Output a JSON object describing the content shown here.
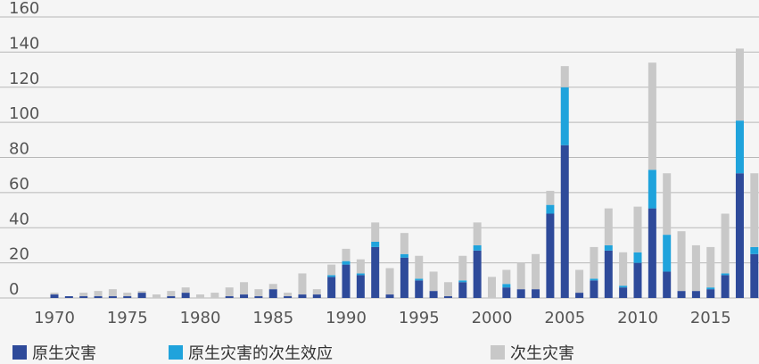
{
  "chart_data": {
    "type": "bar",
    "stacked": true,
    "title": "",
    "xlabel": "",
    "ylabel": "",
    "ylim": [
      0,
      160
    ],
    "yticks": [
      0,
      20,
      40,
      60,
      80,
      100,
      120,
      140,
      160
    ],
    "grid": true,
    "legend_position": "bottom",
    "x": [
      1970,
      1971,
      1972,
      1973,
      1974,
      1975,
      1976,
      1977,
      1978,
      1979,
      1980,
      1981,
      1982,
      1983,
      1984,
      1985,
      1986,
      1987,
      1988,
      1989,
      1990,
      1991,
      1992,
      1993,
      1994,
      1995,
      1996,
      1997,
      1998,
      1999,
      2000,
      2001,
      2002,
      2003,
      2004,
      2005,
      2006,
      2007,
      2008,
      2009,
      2010,
      2011,
      2012,
      2013,
      2014,
      2015,
      2016,
      2017,
      2018
    ],
    "xtick_labels": [
      "1970",
      "1975",
      "1980",
      "1985",
      "1990",
      "1995",
      "2000",
      "2005",
      "2010",
      "2015"
    ],
    "xtick_years": [
      1970,
      1975,
      1980,
      1985,
      1990,
      1995,
      2000,
      2005,
      2010,
      2015
    ],
    "series": [
      {
        "name": "原生灾害",
        "color": "#2e4a9a",
        "values": [
          2,
          1,
          1,
          1,
          1,
          1,
          3,
          0,
          1,
          3,
          0,
          0,
          1,
          2,
          1,
          5,
          1,
          2,
          2,
          12,
          19,
          13,
          29,
          2,
          23,
          10,
          4,
          1,
          9,
          27,
          0,
          6,
          5,
          5,
          48,
          87,
          3,
          10,
          27,
          6,
          20,
          51,
          15,
          4,
          4,
          5,
          13,
          71,
          25
        ]
      },
      {
        "name": "原生灾害的次生效应",
        "color": "#1fa3dc",
        "values": [
          0,
          0,
          0,
          0,
          0,
          0,
          0,
          0,
          0,
          0,
          0,
          0,
          0,
          0,
          0,
          0,
          0,
          0,
          0,
          1,
          2,
          1,
          3,
          0,
          2,
          1,
          0,
          0,
          1,
          3,
          0,
          2,
          0,
          0,
          5,
          33,
          0,
          1,
          3,
          1,
          6,
          22,
          21,
          0,
          0,
          1,
          1,
          30,
          4
        ]
      },
      {
        "name": "次生灾害",
        "color": "#c8c8c8",
        "values": [
          1,
          0,
          2,
          3,
          4,
          2,
          1,
          2,
          3,
          3,
          2,
          3,
          5,
          7,
          4,
          3,
          2,
          12,
          3,
          6,
          7,
          8,
          11,
          15,
          12,
          13,
          11,
          8,
          14,
          13,
          12,
          8,
          15,
          20,
          8,
          12,
          13,
          18,
          21,
          19,
          26,
          61,
          35,
          34,
          26,
          23,
          34,
          41,
          42
        ]
      }
    ]
  }
}
